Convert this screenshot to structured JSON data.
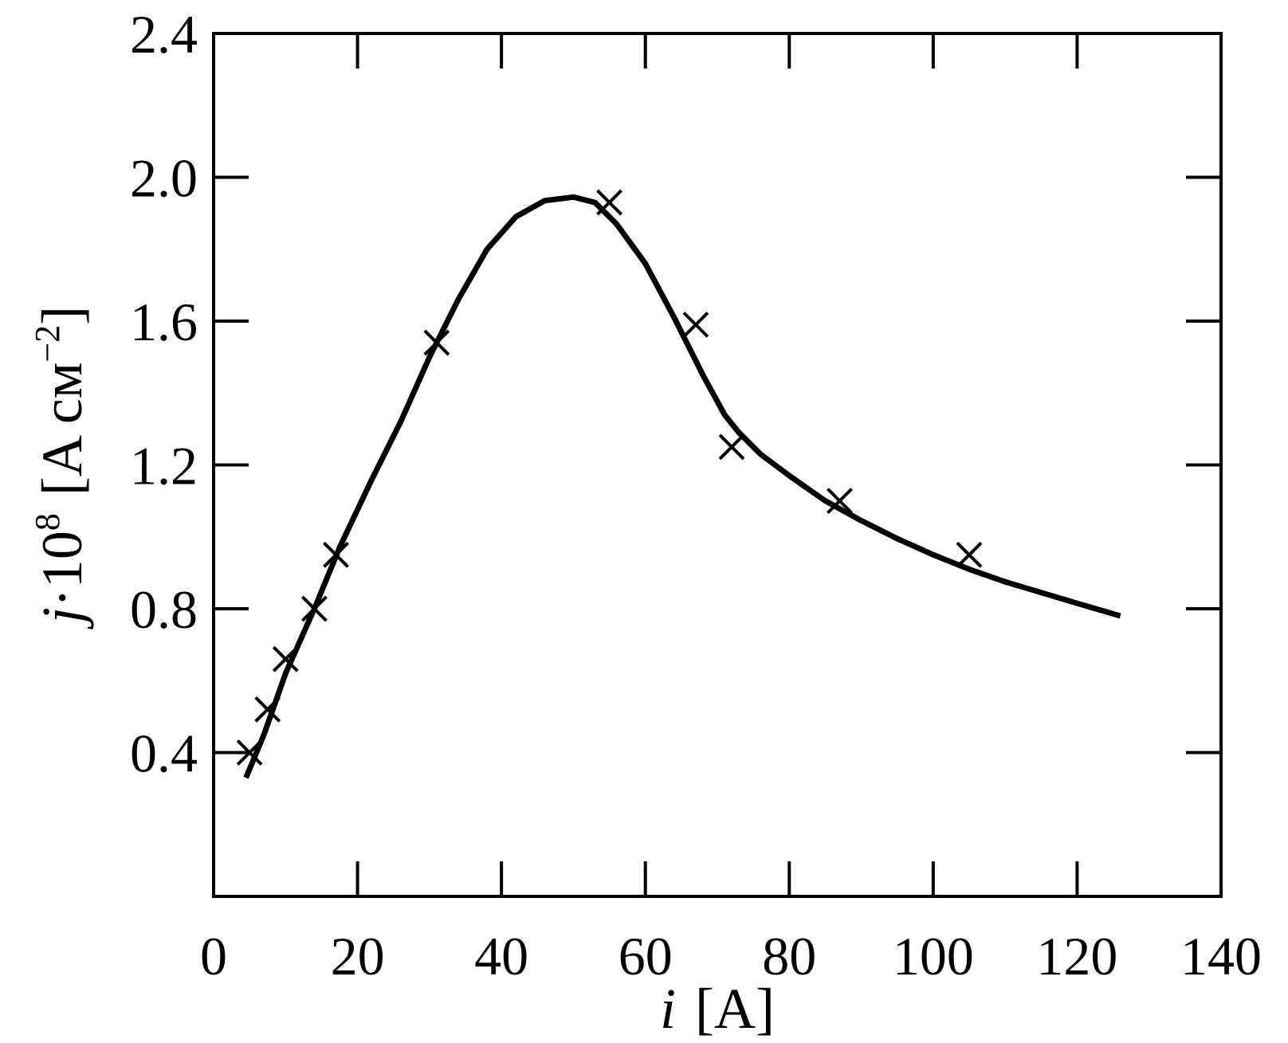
{
  "chart_data": {
    "type": "line",
    "xlabel": {
      "var": "i",
      "unit": "[A]"
    },
    "ylabel": {
      "var": "j",
      "mid": "·10",
      "exp": "8",
      "unit_pre": "[A cм",
      "unit_exp": "−2",
      "unit_post": "]"
    },
    "xlim": [
      0,
      140
    ],
    "ylim": [
      0,
      2.4
    ],
    "xticks": [
      0,
      20,
      40,
      60,
      80,
      100,
      120,
      140
    ],
    "xtick_labels": [
      "0",
      "20",
      "40",
      "60",
      "80",
      "100",
      "120",
      "140"
    ],
    "yticks": [
      0.4,
      0.8,
      1.2,
      1.6,
      2.0,
      2.4
    ],
    "ytick_labels": [
      "0.4",
      "0.8",
      "1.2",
      "1.6",
      "2.0",
      "2.4"
    ],
    "grid": false,
    "series": [
      {
        "kind": "line",
        "points": [
          [
            4.5,
            0.33
          ],
          [
            7,
            0.45
          ],
          [
            10,
            0.62
          ],
          [
            14,
            0.8
          ],
          [
            17.5,
            0.97
          ],
          [
            22,
            1.16
          ],
          [
            26,
            1.32
          ],
          [
            30,
            1.5
          ],
          [
            34,
            1.66
          ],
          [
            38,
            1.8
          ],
          [
            42,
            1.89
          ],
          [
            46,
            1.935
          ],
          [
            50,
            1.945
          ],
          [
            53,
            1.93
          ],
          [
            56,
            1.87
          ],
          [
            60,
            1.76
          ],
          [
            64,
            1.61
          ],
          [
            68,
            1.45
          ],
          [
            71,
            1.34
          ],
          [
            73,
            1.29
          ],
          [
            76,
            1.23
          ],
          [
            80,
            1.17
          ],
          [
            85,
            1.1
          ],
          [
            90,
            1.045
          ],
          [
            95,
            0.995
          ],
          [
            100,
            0.95
          ],
          [
            105,
            0.91
          ],
          [
            110,
            0.875
          ],
          [
            115,
            0.845
          ],
          [
            120,
            0.815
          ],
          [
            126,
            0.78
          ]
        ]
      },
      {
        "kind": "scatter",
        "marker": "x",
        "points": [
          [
            5,
            0.4
          ],
          [
            7.5,
            0.52
          ],
          [
            10,
            0.66
          ],
          [
            14,
            0.8
          ],
          [
            17,
            0.95
          ],
          [
            31,
            1.54
          ],
          [
            55,
            1.93
          ],
          [
            67,
            1.59
          ],
          [
            72,
            1.25
          ],
          [
            87,
            1.1
          ],
          [
            105,
            0.95
          ]
        ]
      }
    ],
    "colors": {
      "line": "#000000",
      "marker": "#000000",
      "frame": "#000000"
    }
  }
}
